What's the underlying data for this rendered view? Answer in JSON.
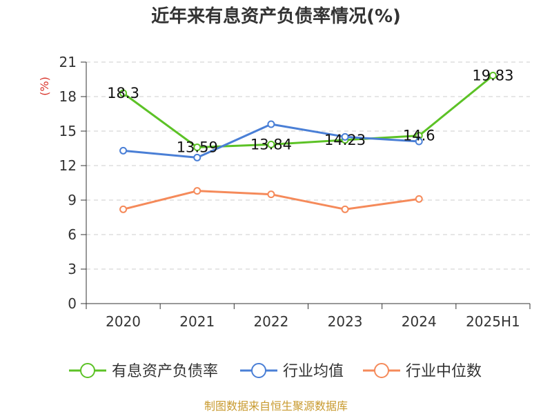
{
  "colors": {
    "axis": "#333333",
    "grid": "#cccccc",
    "ylabel": "#d9342b",
    "source": "#c89a2e"
  },
  "chart_data": {
    "type": "line",
    "title": "近年来有息资产负债率情况(%)",
    "ylabel": "(%)",
    "xlabel": "",
    "categories": [
      "2020",
      "2021",
      "2022",
      "2023",
      "2024",
      "2025H1"
    ],
    "ylim": [
      0,
      21
    ],
    "yticks": [
      0,
      3,
      6,
      9,
      12,
      15,
      18,
      21
    ],
    "grid": true,
    "legend_position": "bottom",
    "series": [
      {
        "name": "有息资产负债率",
        "color": "#5cc226",
        "values": [
          18.3,
          13.59,
          13.84,
          14.23,
          14.6,
          19.83
        ],
        "labels": [
          "18.3",
          "13.59",
          "13.84",
          "14.23",
          "14.6",
          "19.83"
        ]
      },
      {
        "name": "行业均值",
        "color": "#4a7fd6",
        "values": [
          13.3,
          12.7,
          15.6,
          14.5,
          14.1,
          null
        ]
      },
      {
        "name": "行业中位数",
        "color": "#f58a5a",
        "values": [
          8.2,
          9.8,
          9.5,
          8.2,
          9.1,
          null
        ]
      }
    ]
  },
  "source": "制图数据来自恒生聚源数据库"
}
